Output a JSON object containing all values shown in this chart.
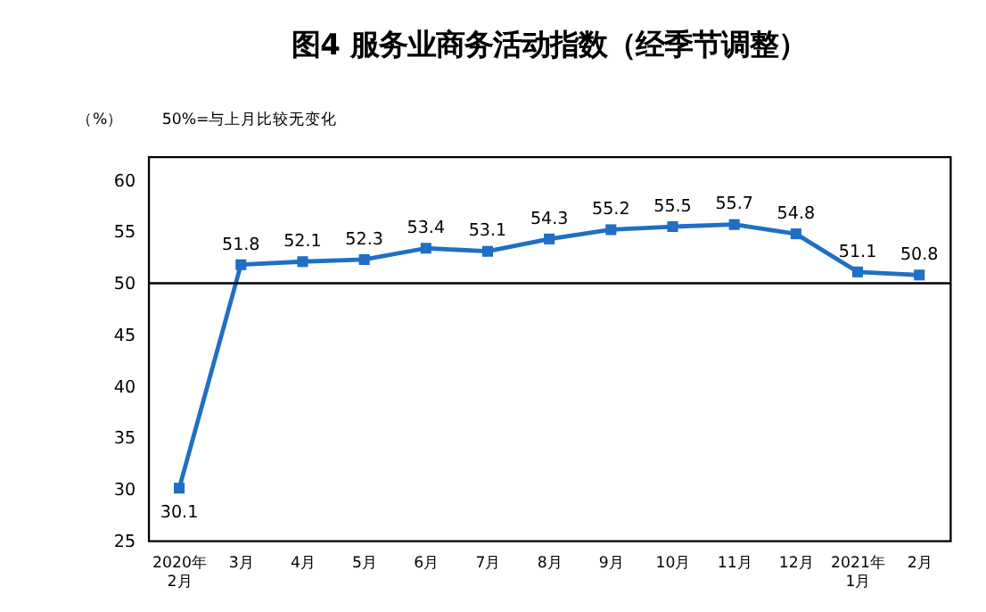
{
  "chart_data": {
    "type": "line",
    "title": "图4  服务业商务活动指数（经季节调整）",
    "ylabel": "（%）",
    "annotations": [
      "50%=与上月比较无变化"
    ],
    "categories": [
      "2020年\n2月",
      "3月",
      "4月",
      "5月",
      "6月",
      "7月",
      "8月",
      "9月",
      "10月",
      "11月",
      "12月",
      "2021年\n1月",
      "2月"
    ],
    "series": [
      {
        "color": "#1f6fc4",
        "values": [
          30.1,
          51.8,
          52.1,
          52.3,
          53.4,
          53.1,
          54.3,
          55.2,
          55.5,
          55.7,
          54.8,
          51.1,
          50.8
        ]
      }
    ],
    "ylim": [
      25,
      62.3
    ],
    "yticks": [
      25,
      30,
      35,
      40,
      45,
      50,
      55,
      60
    ],
    "ref_lines": [
      {
        "axis": "y",
        "value": 50,
        "label": null,
        "color": "#000000"
      }
    ],
    "data_labels": true,
    "marker": "square",
    "line_style": "solid",
    "grid": false
  }
}
